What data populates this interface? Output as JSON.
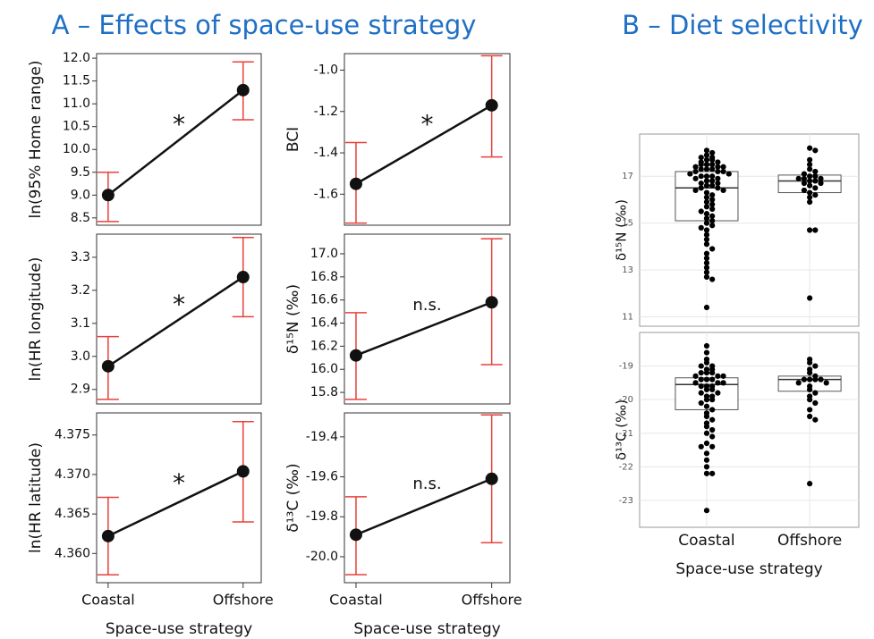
{
  "headings": [
    "A – Effects of space-use strategy",
    "B – Diet selectivity"
  ],
  "chart_data": [
    {
      "type": "line",
      "ylabel": "ln(95% Home range)",
      "annotation": "*",
      "values": [
        9.0,
        11.3
      ],
      "lower": [
        8.42,
        10.65
      ],
      "upper": [
        9.5,
        11.92
      ],
      "ylim": [
        8.34,
        12.1
      ],
      "yticks": [
        8.5,
        {
          "value": 9.0,
          "label": "9.0"
        },
        9.5,
        {
          "value": 10.0,
          "label": "10.0"
        },
        10.5,
        {
          "value": 11.0,
          "label": "11.0"
        },
        11.5,
        {
          "value": 12.0,
          "label": "12.0"
        }
      ]
    },
    {
      "type": "line",
      "ylabel": "BCI",
      "annotation": "*",
      "values": [
        -1.55,
        -1.17
      ],
      "lower": [
        -1.74,
        -1.42
      ],
      "upper": [
        -1.35,
        -0.93
      ],
      "ylim": [
        -1.75,
        -0.92
      ],
      "yticks": [
        -1.6,
        -1.4,
        -1.2,
        {
          "value": -1.0,
          "label": "-1.0"
        }
      ]
    },
    {
      "type": "line",
      "ylabel": "ln(HR longitude)",
      "annotation": "*",
      "values": [
        2.97,
        3.24
      ],
      "lower": [
        2.87,
        3.12
      ],
      "upper": [
        3.06,
        3.36
      ],
      "ylim": [
        2.856,
        3.37
      ],
      "yticks": [
        2.9,
        {
          "value": 3.0,
          "label": "3.0"
        },
        3.1,
        3.2,
        3.3
      ]
    },
    {
      "type": "line",
      "ylabel": "δ¹⁵N (‰)",
      "annotation": "n.s.",
      "values": [
        16.12,
        16.58
      ],
      "lower": [
        15.74,
        16.04
      ],
      "upper": [
        16.49,
        17.13
      ],
      "ylim": [
        15.7,
        17.17
      ],
      "yticks": [
        15.8,
        {
          "value": 16.0,
          "label": "16.0"
        },
        16.2,
        16.4,
        16.6,
        16.8,
        {
          "value": 17.0,
          "label": "17.0"
        }
      ]
    },
    {
      "type": "line",
      "ylabel": "ln(HR latitude)",
      "annotation": "*",
      "categories": [
        "Coastal",
        "Offshore"
      ],
      "xlabel": "Space-use strategy",
      "values": [
        4.3622,
        4.3704
      ],
      "lower": [
        4.3573,
        4.364
      ],
      "upper": [
        4.3671,
        4.3767
      ],
      "ylim": [
        4.3563,
        4.3778
      ],
      "yticks": [
        {
          "value": 4.36,
          "label": "4.360"
        },
        4.365,
        {
          "value": 4.37,
          "label": "4.370"
        },
        4.375
      ]
    },
    {
      "type": "line",
      "ylabel": "δ¹³C (‰)",
      "annotation": "n.s.",
      "categories": [
        "Coastal",
        "Offshore"
      ],
      "xlabel": "Space-use strategy",
      "values": [
        -19.89,
        -19.61
      ],
      "lower": [
        -20.09,
        -19.93
      ],
      "upper": [
        -19.7,
        -19.29
      ],
      "ylim": [
        -20.13,
        -19.28
      ],
      "yticks": [
        {
          "value": -20.0,
          "label": "-20.0"
        },
        -19.8,
        -19.6,
        -19.4
      ]
    },
    {
      "type": "box",
      "ylabel": "δ¹⁵N (‰)",
      "grid": true,
      "ylim": [
        10.6,
        18.8
      ],
      "yticks": [
        11,
        13,
        15,
        17
      ],
      "q1": [
        15.1,
        16.3
      ],
      "median": [
        16.5,
        16.8
      ],
      "q3": [
        17.2,
        17.05
      ],
      "points": [
        [
          18.1,
          18.0,
          17.9,
          17.8,
          17.8,
          17.7,
          17.7,
          17.6,
          17.6,
          17.5,
          17.5,
          17.5,
          17.4,
          17.4,
          17.4,
          17.3,
          17.3,
          17.3,
          17.2,
          17.2,
          17.2,
          17.1,
          17.1,
          17.0,
          17.0,
          17.0,
          16.9,
          16.9,
          16.8,
          16.8,
          16.7,
          16.7,
          16.6,
          16.6,
          16.5,
          16.5,
          16.4,
          16.4,
          16.3,
          16.2,
          16.1,
          16.0,
          15.9,
          15.8,
          15.7,
          15.6,
          15.5,
          15.4,
          15.3,
          15.2,
          15.1,
          15.0,
          14.9,
          14.8,
          14.7,
          14.5,
          14.3,
          14.1,
          13.9,
          13.7,
          13.5,
          13.3,
          13.1,
          12.9,
          12.7,
          12.6,
          11.4
        ],
        [
          18.2,
          18.1,
          17.7,
          17.5,
          17.3,
          17.2,
          17.1,
          17.0,
          17.0,
          16.9,
          16.9,
          16.9,
          16.8,
          16.8,
          16.7,
          16.7,
          16.6,
          16.5,
          16.4,
          16.3,
          16.2,
          16.1,
          15.9,
          14.7,
          14.7,
          11.8
        ]
      ]
    },
    {
      "type": "box",
      "ylabel": "δ¹³C (‰)",
      "grid": true,
      "categories": [
        "Coastal",
        "Offshore"
      ],
      "xlabel": "Space-use strategy",
      "ylim": [
        -23.8,
        -18.0
      ],
      "yticks": [
        -23,
        -22,
        -21,
        -20,
        -19
      ],
      "q1": [
        -20.3,
        -19.75
      ],
      "median": [
        -19.55,
        -19.4
      ],
      "q3": [
        -19.35,
        -19.3
      ],
      "points": [
        [
          -18.4,
          -18.6,
          -18.8,
          -18.9,
          -19.0,
          -19.0,
          -19.1,
          -19.1,
          -19.2,
          -19.2,
          -19.2,
          -19.3,
          -19.3,
          -19.3,
          -19.4,
          -19.4,
          -19.4,
          -19.5,
          -19.5,
          -19.5,
          -19.6,
          -19.6,
          -19.6,
          -19.7,
          -19.7,
          -19.8,
          -19.8,
          -19.9,
          -19.9,
          -20.0,
          -20.0,
          -20.1,
          -20.2,
          -20.3,
          -20.4,
          -20.5,
          -20.6,
          -20.7,
          -20.8,
          -20.9,
          -21.0,
          -21.1,
          -21.3,
          -21.4,
          -21.4,
          -21.6,
          -21.8,
          -22.0,
          -22.2,
          -22.2,
          -23.3
        ],
        [
          -18.8,
          -18.9,
          -19.0,
          -19.1,
          -19.2,
          -19.3,
          -19.4,
          -19.4,
          -19.4,
          -19.4,
          -19.5,
          -19.5,
          -19.6,
          -19.7,
          -19.8,
          -19.9,
          -20.0,
          -20.1,
          -20.3,
          -20.5,
          -20.6,
          -22.5
        ]
      ]
    }
  ]
}
